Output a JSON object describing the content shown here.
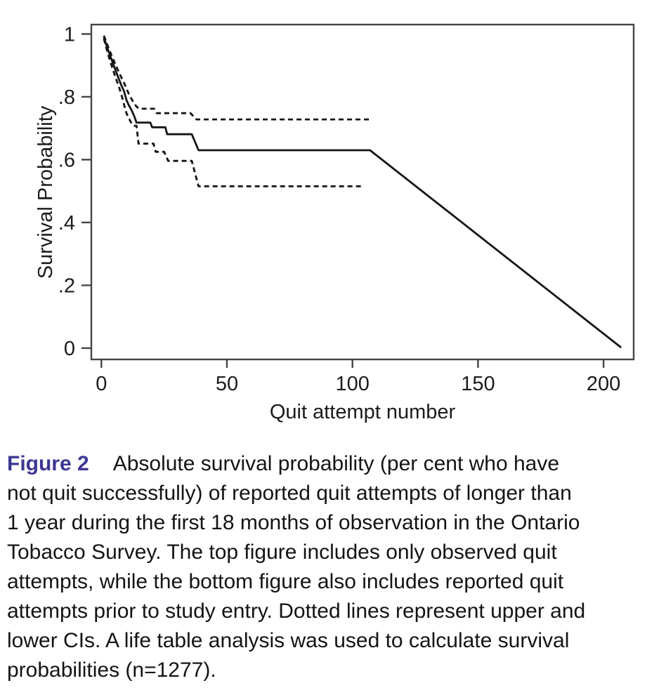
{
  "chart_data": {
    "type": "line",
    "title": "",
    "xlabel": "Quit attempt number",
    "ylabel": "Survival Probability",
    "xlim": [
      -4,
      212
    ],
    "ylim": [
      -0.036,
      1.03
    ],
    "grid": false,
    "legend": "none",
    "line_color": "#141414",
    "frame_color": "#454545",
    "text_color": "#1c1c1c",
    "x_ticks": {
      "values": [
        0,
        50,
        100,
        150,
        200
      ],
      "labels": [
        "0",
        "50",
        "100",
        "150",
        "200"
      ]
    },
    "y_ticks": {
      "values": [
        0,
        0.2,
        0.4,
        0.6,
        0.8,
        1
      ],
      "labels": [
        "0",
        ".2",
        ".4",
        ".6",
        ".8",
        "1"
      ]
    },
    "series": [
      {
        "name": "survival-estimate",
        "style": "solid",
        "points": [
          [
            1,
            0.99
          ],
          [
            2,
            0.965
          ],
          [
            3,
            0.942
          ],
          [
            4,
            0.92
          ],
          [
            5,
            0.898
          ],
          [
            6,
            0.877
          ],
          [
            7,
            0.856
          ],
          [
            8,
            0.836
          ],
          [
            9,
            0.818
          ],
          [
            10,
            0.79
          ],
          [
            11,
            0.772
          ],
          [
            12,
            0.758
          ],
          [
            13,
            0.74
          ],
          [
            14,
            0.718
          ],
          [
            19.5,
            0.718
          ],
          [
            20.2,
            0.703
          ],
          [
            25.5,
            0.703
          ],
          [
            26.2,
            0.681
          ],
          [
            36,
            0.681
          ],
          [
            38.7,
            0.63
          ],
          [
            107,
            0.63
          ],
          [
            207,
            0.002
          ]
        ]
      },
      {
        "name": "upper-ci",
        "style": "dashed",
        "points": [
          [
            1,
            0.995
          ],
          [
            2,
            0.974
          ],
          [
            3,
            0.953
          ],
          [
            4,
            0.933
          ],
          [
            5,
            0.914
          ],
          [
            6,
            0.896
          ],
          [
            7,
            0.878
          ],
          [
            8,
            0.861
          ],
          [
            9,
            0.845
          ],
          [
            10,
            0.826
          ],
          [
            11,
            0.808
          ],
          [
            12,
            0.793
          ],
          [
            13,
            0.78
          ],
          [
            14,
            0.769
          ],
          [
            15,
            0.762
          ],
          [
            21,
            0.762
          ],
          [
            22,
            0.748
          ],
          [
            35.5,
            0.748
          ],
          [
            37.8,
            0.728
          ],
          [
            107,
            0.728
          ]
        ]
      },
      {
        "name": "lower-ci",
        "style": "dashed",
        "points": [
          [
            1,
            0.985
          ],
          [
            2,
            0.955
          ],
          [
            3,
            0.927
          ],
          [
            4,
            0.901
          ],
          [
            5,
            0.877
          ],
          [
            6,
            0.854
          ],
          [
            7,
            0.832
          ],
          [
            8,
            0.806
          ],
          [
            9,
            0.776
          ],
          [
            10,
            0.748
          ],
          [
            11,
            0.731
          ],
          [
            12,
            0.716
          ],
          [
            13,
            0.708
          ],
          [
            14,
            0.708
          ],
          [
            14.8,
            0.651
          ],
          [
            20.8,
            0.651
          ],
          [
            21.6,
            0.625
          ],
          [
            25,
            0.625
          ],
          [
            26.6,
            0.596
          ],
          [
            36,
            0.596
          ],
          [
            38.7,
            0.515
          ],
          [
            104,
            0.515
          ]
        ]
      }
    ]
  },
  "caption": {
    "label": "Figure 2",
    "label_color": "#3b3793",
    "lines": [
      "Absolute survival probability (per cent who have",
      "not quit successfully) of reported quit attempts of longer than",
      "1 year during the first 18 months of observation in the Ontario",
      "Tobacco Survey. The top figure includes only observed quit",
      "attempts, while the bottom figure also includes reported quit",
      "attempts prior to study entry. Dotted lines represent upper and",
      "lower CIs. A life table analysis was used to calculate survival",
      "probabilities (n=1277)."
    ]
  }
}
